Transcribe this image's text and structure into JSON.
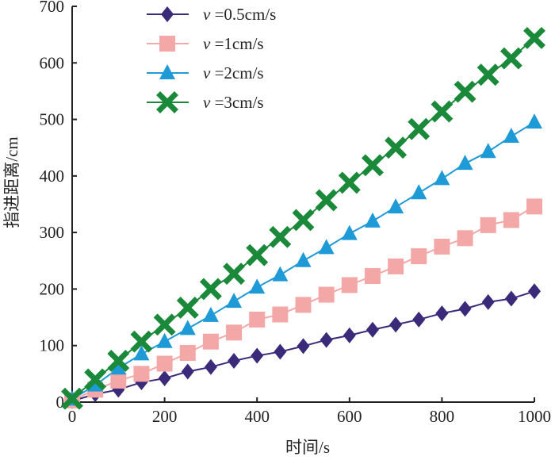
{
  "chart_data": {
    "type": "line",
    "xlabel": "时间/s",
    "ylabel": "指进距离/cm",
    "xlim": [
      0,
      1000
    ],
    "ylim": [
      0,
      700
    ],
    "xticks": [
      "0",
      "200",
      "400",
      "600",
      "800",
      "1000"
    ],
    "yticks": [
      "0",
      "100",
      "200",
      "300",
      "400",
      "500",
      "600",
      "700"
    ],
    "grid": false,
    "legend_position": "top-left",
    "series": [
      {
        "name": "ν=0.5cm/s",
        "legend_symbol": "ν",
        "legend_text": "=0.5cm/s",
        "marker": "diamond",
        "color": "#3b2a7a",
        "x": [
          0,
          50,
          100,
          150,
          200,
          250,
          300,
          350,
          400,
          450,
          500,
          550,
          600,
          650,
          700,
          750,
          800,
          850,
          900,
          950,
          1000
        ],
        "y": [
          2,
          14,
          22,
          35,
          42,
          54,
          62,
          73,
          82,
          89,
          99,
          110,
          118,
          128,
          137,
          146,
          157,
          165,
          177,
          183,
          196
        ]
      },
      {
        "name": "ν=1cm/s",
        "legend_symbol": "ν",
        "legend_text": "=1cm/s",
        "marker": "square",
        "color": "#f4a7a7",
        "x": [
          0,
          50,
          100,
          150,
          200,
          250,
          300,
          350,
          400,
          450,
          500,
          550,
          600,
          650,
          700,
          750,
          800,
          850,
          900,
          950,
          1000
        ],
        "y": [
          3,
          22,
          38,
          50,
          68,
          87,
          107,
          123,
          146,
          155,
          172,
          190,
          207,
          223,
          240,
          258,
          275,
          290,
          313,
          322,
          346
        ]
      },
      {
        "name": "ν=2cm/s",
        "legend_symbol": "ν",
        "legend_text": "=2cm/s",
        "marker": "triangle",
        "color": "#1e9ad6",
        "x": [
          0,
          50,
          100,
          150,
          200,
          250,
          300,
          350,
          400,
          450,
          500,
          550,
          600,
          650,
          700,
          750,
          800,
          850,
          900,
          950,
          1000
        ],
        "y": [
          5,
          30,
          60,
          85,
          107,
          130,
          153,
          178,
          203,
          225,
          250,
          273,
          298,
          320,
          345,
          370,
          395,
          422,
          443,
          470,
          495
        ]
      },
      {
        "name": "ν=3cm/s",
        "legend_symbol": "ν",
        "legend_text": "=3cm/s",
        "marker": "x",
        "color": "#1a8a3a",
        "x": [
          0,
          50,
          100,
          150,
          200,
          250,
          300,
          350,
          400,
          450,
          500,
          550,
          600,
          650,
          700,
          750,
          800,
          850,
          900,
          950,
          1000
        ],
        "y": [
          6,
          40,
          73,
          107,
          137,
          167,
          200,
          227,
          260,
          292,
          322,
          357,
          388,
          419,
          450,
          483,
          514,
          549,
          579,
          608,
          644
        ]
      }
    ]
  }
}
